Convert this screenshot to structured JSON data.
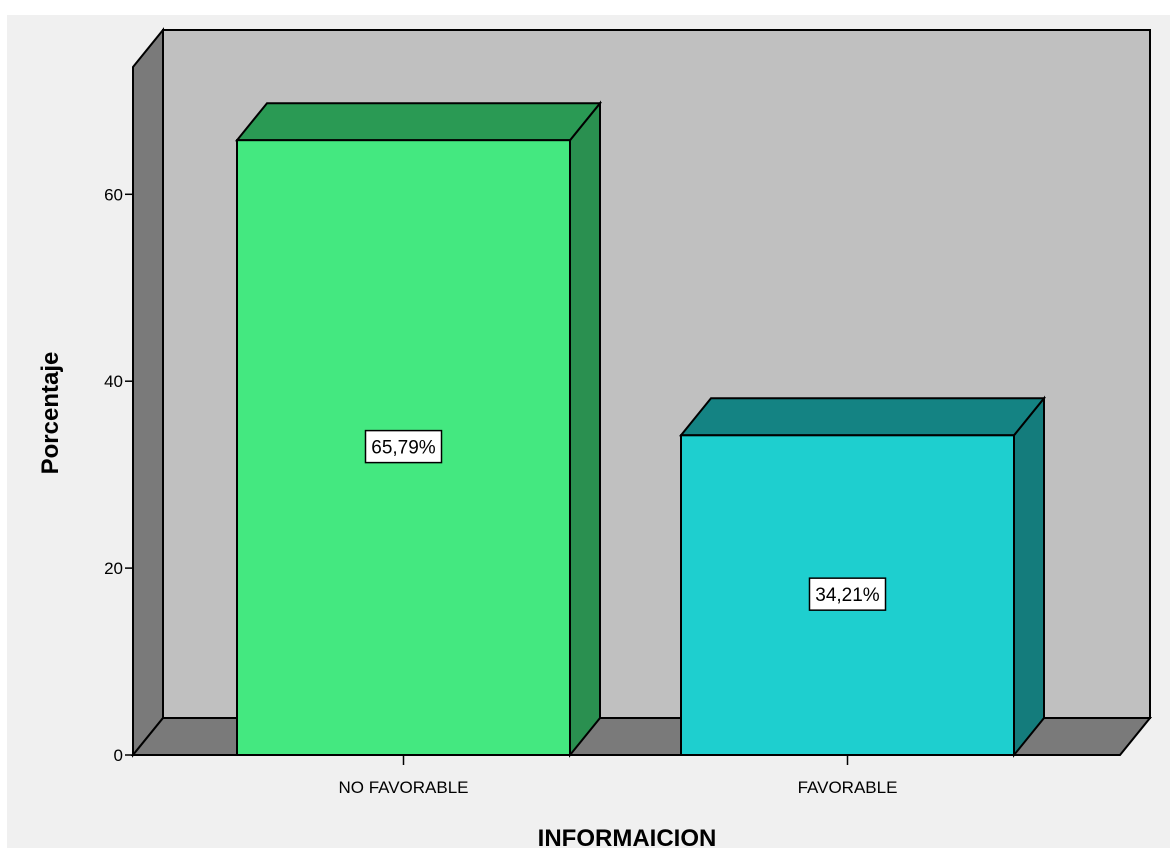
{
  "chart_data": {
    "type": "bar",
    "style": "3d",
    "categories": [
      "NO FAVORABLE",
      "FAVORABLE"
    ],
    "values": [
      65.79,
      34.21
    ],
    "data_labels": [
      "65,79%",
      "34,21%"
    ],
    "xlabel": "INFORMAICION",
    "ylabel": "Porcentaje",
    "ylim": [
      0,
      75
    ],
    "yticks": [
      0,
      20,
      40,
      60
    ],
    "ytick_labels": [
      "0",
      "20",
      "40",
      "60"
    ],
    "grid": false,
    "legend": "none",
    "colors": {
      "background": "#f0f0f0",
      "back_wall": "#c0c0c0",
      "side_wall": "#7a7a7a",
      "floor": "#7a7a7a",
      "bars": [
        {
          "front": "#44e880",
          "top": "#2a9a54",
          "side": "#2a9050"
        },
        {
          "front": "#1ecfcf",
          "top": "#148383",
          "side": "#147c7c"
        }
      ]
    }
  }
}
